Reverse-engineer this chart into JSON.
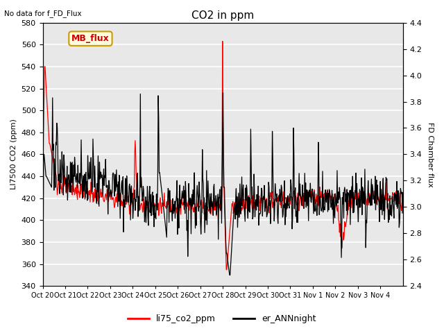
{
  "title": "CO2 in ppm",
  "top_left_text": "No data for f_FD_Flux",
  "ylabel_left": "LI7500 CO2 (ppm)",
  "ylabel_right": "FD Chamber flux",
  "ylim_left": [
    340,
    580
  ],
  "ylim_right": [
    2.4,
    4.4
  ],
  "yticks_left": [
    340,
    360,
    380,
    400,
    420,
    440,
    460,
    480,
    500,
    520,
    540,
    560,
    580
  ],
  "yticks_right": [
    2.4,
    2.6,
    2.8,
    3.0,
    3.2,
    3.4,
    3.6,
    3.8,
    4.0,
    4.2,
    4.4
  ],
  "xtick_labels": [
    "Oct 20",
    "Oct 21",
    "Oct 22",
    "Oct 23",
    "Oct 24",
    "Oct 25",
    "Oct 26",
    "Oct 27",
    "Oct 28",
    "Oct 29",
    "Oct 30",
    "Oct 31",
    "Nov 1",
    "Nov 2",
    "Nov 3",
    "Nov 4"
  ],
  "legend_entries": [
    "li75_co2_ppm",
    "er_ANNnight"
  ],
  "legend_colors": [
    "red",
    "black"
  ],
  "inset_label": "MB_flux",
  "inset_facecolor": "lightyellow",
  "inset_edgecolor": "#cc9900",
  "inset_textcolor": "#cc0000",
  "background_color": "#e8e8e8",
  "line1_color": "red",
  "line2_color": "black",
  "grid_color": "white",
  "fig_facecolor": "white",
  "title_fontsize": 11,
  "label_fontsize": 8,
  "tick_fontsize": 8
}
